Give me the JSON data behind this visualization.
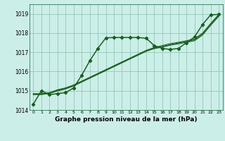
{
  "title": "Graphe pression niveau de la mer (hPa)",
  "bg_color": "#cceee8",
  "grid_color": "#99ccbb",
  "line_color": "#1a5e20",
  "ylim": [
    1014.0,
    1019.5
  ],
  "xlim": [
    -0.5,
    23.5
  ],
  "yticks": [
    1014,
    1015,
    1016,
    1017,
    1018,
    1019
  ],
  "xticks": [
    0,
    1,
    2,
    3,
    4,
    5,
    6,
    7,
    8,
    9,
    10,
    11,
    12,
    13,
    14,
    15,
    16,
    17,
    18,
    19,
    20,
    21,
    22,
    23
  ],
  "main_series": [
    1014.3,
    1015.0,
    1014.8,
    1014.85,
    1014.9,
    1015.15,
    1015.8,
    1016.55,
    1017.2,
    1017.75,
    1017.77,
    1017.77,
    1017.77,
    1017.77,
    1017.73,
    1017.35,
    1017.2,
    1017.15,
    1017.2,
    1017.5,
    1017.8,
    1018.45,
    1018.95,
    1018.97
  ],
  "bundle_lines": [
    [
      1014.85,
      1014.85,
      1014.9,
      1015.05,
      1015.15,
      1015.3,
      1015.5,
      1015.7,
      1015.9,
      1016.1,
      1016.3,
      1016.5,
      1016.7,
      1016.9,
      1017.1,
      1017.25,
      1017.35,
      1017.45,
      1017.52,
      1017.6,
      1017.7,
      1018.0,
      1018.5,
      1018.97
    ],
    [
      1014.82,
      1014.82,
      1014.88,
      1015.02,
      1015.12,
      1015.28,
      1015.48,
      1015.68,
      1015.88,
      1016.08,
      1016.28,
      1016.48,
      1016.68,
      1016.88,
      1017.08,
      1017.22,
      1017.3,
      1017.4,
      1017.48,
      1017.56,
      1017.65,
      1017.95,
      1018.45,
      1018.92
    ],
    [
      1014.8,
      1014.8,
      1014.86,
      1014.99,
      1015.09,
      1015.25,
      1015.45,
      1015.65,
      1015.85,
      1016.05,
      1016.25,
      1016.45,
      1016.65,
      1016.85,
      1017.05,
      1017.19,
      1017.27,
      1017.37,
      1017.44,
      1017.52,
      1017.6,
      1017.9,
      1018.4,
      1018.87
    ]
  ]
}
